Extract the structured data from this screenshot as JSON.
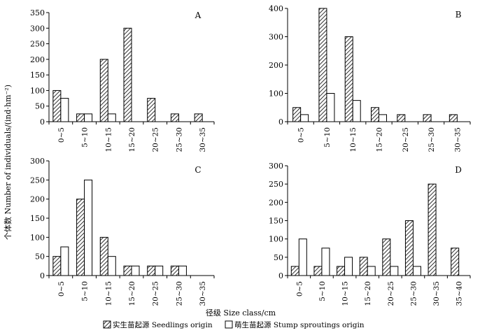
{
  "figure": {
    "ylabel": "个体数 Number of individuals/(ind·hm⁻²)",
    "xlabel": "径级 Size class/cm",
    "legend": {
      "seedlings": "实生苗起源 Seedlings origin",
      "sprouts": "萌生苗起源 Stump sproutings origin"
    }
  },
  "chart_data": [
    {
      "type": "bar",
      "panel": "A",
      "categories": [
        "0~5",
        "5~10",
        "10~15",
        "15~20",
        "20~25",
        "25~30",
        "30~35"
      ],
      "ylim": [
        0,
        350
      ],
      "yticks": [
        0,
        50,
        100,
        150,
        200,
        250,
        300,
        350
      ],
      "series": [
        {
          "name": "实生苗起源 Seedlings origin",
          "pattern": "hatch",
          "values": [
            100,
            25,
            200,
            300,
            75,
            25,
            25
          ]
        },
        {
          "name": "萌生苗起源 Stump sproutings origin",
          "pattern": "open",
          "values": [
            75,
            25,
            25,
            null,
            null,
            null,
            null
          ]
        }
      ]
    },
    {
      "type": "bar",
      "panel": "B",
      "categories": [
        "0~5",
        "5~10",
        "10~15",
        "15~20",
        "20~25",
        "25~30",
        "30~35"
      ],
      "ylim": [
        0,
        400
      ],
      "yticks": [
        0,
        100,
        200,
        300,
        400
      ],
      "series": [
        {
          "name": "实生苗起源 Seedlings origin",
          "pattern": "hatch",
          "values": [
            50,
            400,
            300,
            50,
            25,
            25,
            25
          ]
        },
        {
          "name": "萌生苗起源 Stump sproutings origin",
          "pattern": "open",
          "values": [
            25,
            100,
            75,
            25,
            null,
            null,
            null
          ]
        }
      ]
    },
    {
      "type": "bar",
      "panel": "C",
      "categories": [
        "0~5",
        "5~10",
        "10~15",
        "15~20",
        "20~25",
        "25~30",
        "30~35"
      ],
      "ylim": [
        0,
        300
      ],
      "yticks": [
        0,
        50,
        100,
        150,
        200,
        250,
        300
      ],
      "series": [
        {
          "name": "实生苗起源 Seedlings origin",
          "pattern": "hatch",
          "values": [
            50,
            200,
            100,
            25,
            25,
            25,
            null
          ]
        },
        {
          "name": "萌生苗起源 Stump sproutings origin",
          "pattern": "open",
          "values": [
            75,
            250,
            50,
            25,
            25,
            25,
            null
          ]
        }
      ]
    },
    {
      "type": "bar",
      "panel": "D",
      "categories": [
        "0~5",
        "5~10",
        "10~15",
        "15~20",
        "20~25",
        "25~30",
        "30~35",
        "35~40"
      ],
      "ylim": [
        0,
        300
      ],
      "yticks": [
        0,
        50,
        100,
        150,
        200,
        250,
        300
      ],
      "series": [
        {
          "name": "实生苗起源 Seedlings origin",
          "pattern": "hatch",
          "values": [
            25,
            25,
            25,
            50,
            100,
            150,
            250,
            75
          ]
        },
        {
          "name": "萌生苗起源 Stump sproutings origin",
          "pattern": "open",
          "values": [
            100,
            75,
            50,
            25,
            25,
            25,
            null,
            null
          ]
        }
      ]
    }
  ]
}
